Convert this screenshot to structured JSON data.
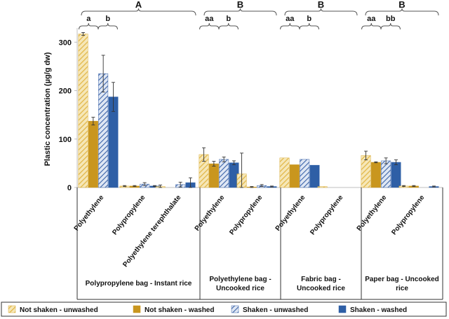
{
  "chart_data": {
    "type": "bar",
    "ylabel": "Plastic concentration (µg/g dw)",
    "ylim": [
      0,
      330
    ],
    "yticks": [
      0,
      100,
      200,
      300
    ],
    "series": [
      {
        "name": "Not shaken - unwashed",
        "color": "#e2b84a",
        "pattern": "diagonal-hatch"
      },
      {
        "name": "Not shaken - washed",
        "color": "#c9961e",
        "pattern": "solid"
      },
      {
        "name": "Shaken - unwashed",
        "color": "#3b63a8",
        "pattern": "diagonal-hatch"
      },
      {
        "name": "Shaken - washed",
        "color": "#2e5fa6",
        "pattern": "solid"
      }
    ],
    "groups": [
      {
        "label": "Polypropylene bag - Instant rice",
        "significance": "A",
        "categories": [
          {
            "label": "Polyethylene",
            "values": [
              317,
              137,
              235,
              187
            ],
            "errors": [
              3,
              8,
              38,
              30
            ],
            "pair_labels": [
              "a",
              "b"
            ]
          },
          {
            "label": "Polypropylene",
            "values": [
              3,
              3,
              7,
              3
            ],
            "errors": [
              1,
              1,
              3,
              1
            ],
            "pair_labels": []
          },
          {
            "label": "Polyethylene terephthalate",
            "values": [
              2,
              0,
              6,
              10
            ],
            "errors": [
              3,
              0,
              5,
              10
            ],
            "pair_labels": []
          }
        ]
      },
      {
        "label": "Polyethylene bag - Uncooked rice",
        "significance": "B",
        "categories": [
          {
            "label": "Polyethylene",
            "values": [
              68,
              49,
              58,
              51
            ],
            "errors": [
              14,
              5,
              5,
              4
            ],
            "pair_labels": [
              "aa",
              "b"
            ]
          },
          {
            "label": "Polypropylene",
            "values": [
              28,
              1,
              4,
              2
            ],
            "errors": [
              43,
              1,
              2,
              1
            ],
            "pair_labels": []
          }
        ]
      },
      {
        "label": "Fabric bag - Uncooked rice",
        "significance": "B",
        "categories": [
          {
            "label": "Polyethylene",
            "values": [
              61,
              47,
              58,
              46
            ],
            "errors": [
              0,
              0,
              0,
              0
            ],
            "pair_labels": [
              "aa",
              "b"
            ]
          },
          {
            "label": "Polypropylene",
            "values": [
              2,
              0,
              0,
              0
            ],
            "errors": [
              0,
              0,
              0,
              0
            ],
            "pair_labels": []
          }
        ]
      },
      {
        "label": "Paper bag - Uncooked rice",
        "significance": "B",
        "categories": [
          {
            "label": "Polyethylene",
            "values": [
              66,
              52,
              55,
              52
            ],
            "errors": [
              9,
              1,
              6,
              5
            ],
            "pair_labels": [
              "aa",
              "bb"
            ]
          },
          {
            "label": "Polypropylene",
            "values": [
              3,
              3,
              0,
              2
            ],
            "errors": [
              1,
              1,
              0,
              1
            ],
            "pair_labels": []
          }
        ]
      }
    ],
    "legend_position": "bottom",
    "grid": false
  }
}
